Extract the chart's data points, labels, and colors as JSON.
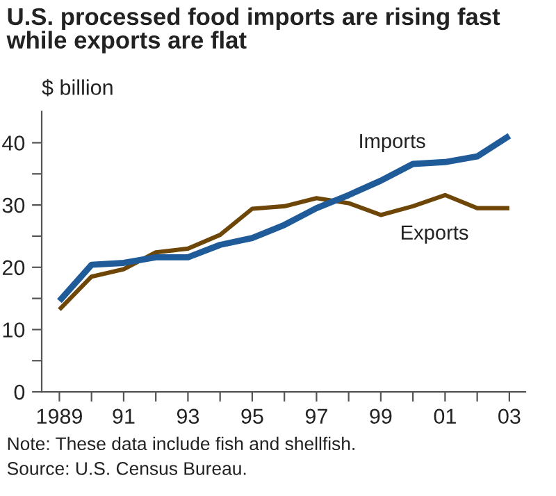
{
  "chart_data": {
    "type": "line",
    "title": "U.S. processed food imports are rising fast\nwhile exports are flat",
    "ylabel": "$ billion",
    "x": [
      1989,
      1990,
      1991,
      1992,
      1993,
      1994,
      1995,
      1996,
      1997,
      1998,
      1999,
      2000,
      2001,
      2002,
      2003
    ],
    "series": [
      {
        "name": "Imports",
        "color": "#1f5b99",
        "values": [
          14.6,
          20.4,
          20.7,
          21.6,
          21.6,
          23.6,
          24.7,
          26.8,
          29.5,
          31.6,
          33.9,
          36.6,
          36.9,
          37.8,
          41.1
        ]
      },
      {
        "name": "Exports",
        "color": "#6e4708",
        "values": [
          13.2,
          18.5,
          19.7,
          22.4,
          23.0,
          25.2,
          29.4,
          29.8,
          31.1,
          30.3,
          28.4,
          29.8,
          31.6,
          29.5,
          29.5
        ]
      }
    ],
    "xlim": [
      1988.45,
      2003.5
    ],
    "xticks": [
      {
        "value": 1989,
        "label": "1989"
      },
      {
        "value": 1990,
        "label": null
      },
      {
        "value": 1991,
        "label": "91"
      },
      {
        "value": 1992,
        "label": null
      },
      {
        "value": 1993,
        "label": "93"
      },
      {
        "value": 1994,
        "label": null
      },
      {
        "value": 1995,
        "label": "95"
      },
      {
        "value": 1996,
        "label": null
      },
      {
        "value": 1997,
        "label": "97"
      },
      {
        "value": 1998,
        "label": null
      },
      {
        "value": 1999,
        "label": "99"
      },
      {
        "value": 2000,
        "label": null
      },
      {
        "value": 2001,
        "label": "01"
      },
      {
        "value": 2002,
        "label": null
      },
      {
        "value": 2003,
        "label": "03"
      }
    ],
    "ylim": [
      0,
      45
    ],
    "yticks": [
      0,
      {
        "value": 5,
        "label": null
      },
      10,
      {
        "value": 15,
        "label": null
      },
      20,
      {
        "value": 25,
        "label": null
      },
      30,
      {
        "value": 35,
        "label": null
      },
      40
    ],
    "grid": false,
    "legend": false,
    "marker": "none",
    "line_style": "solid",
    "annotations": [
      "Note: These data include fish and shellfish.",
      "Source: U.S. Census Bureau."
    ]
  }
}
